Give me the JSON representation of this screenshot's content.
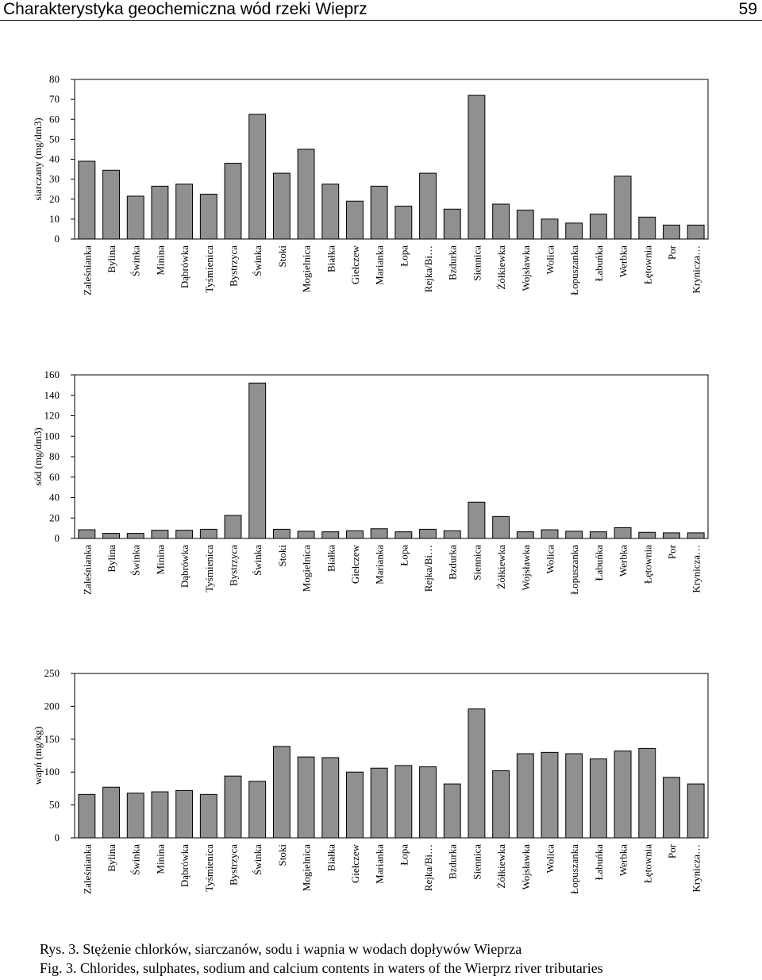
{
  "header": {
    "title": "Charakterystyka geochemiczna wód rzeki Wieprz",
    "page_number": "59"
  },
  "colors": {
    "bar_fill": "#909090",
    "bar_stroke": "#000000",
    "axis": "#000000"
  },
  "chart_data": [
    {
      "type": "bar",
      "categories": [
        "Zaleśnianka",
        "Bylina",
        "Świnka",
        "Minina",
        "Dąbrówka",
        "Tyśmienica",
        "Bystrzyca",
        "Świnka",
        "Stoki",
        "Mogielnica",
        "Białka",
        "Giełczew",
        "Marianka",
        "Łopa",
        "Rejka/Bi…",
        "Bzdurka",
        "Siennica",
        "Żółkiewka",
        "Wojsławka",
        "Wolica",
        "Łopuszanka",
        "Łabuńka",
        "Werbka",
        "Łętownia",
        "Por",
        "Krynicza…"
      ],
      "values": [
        39,
        34.5,
        21.5,
        26.5,
        27.5,
        22.5,
        38,
        62.5,
        33,
        45,
        27.5,
        19,
        26.5,
        16.5,
        33,
        15,
        72,
        17.5,
        14.5,
        10,
        8,
        12.5,
        31.5,
        11,
        7,
        7
      ],
      "ylabel": "siarczany (mg/dm3)",
      "ylim": [
        0,
        80
      ],
      "yticks": [
        "0",
        "10",
        "20",
        "30",
        "40",
        "50",
        "60",
        "70",
        "80"
      ]
    },
    {
      "type": "bar",
      "categories": [
        "Zaleśnianka",
        "Bylina",
        "Świnka",
        "Minina",
        "Dąbrówka",
        "Tyśmienica",
        "Bystrzyca",
        "Świnka",
        "Stoki",
        "Mogielnica",
        "Białka",
        "Giełczew",
        "Marianka",
        "Łopa",
        "Rejka/Bi…",
        "Bzdurka",
        "Siennica",
        "Żółkiewka",
        "Wojsławka",
        "Wolica",
        "Łopuszanka",
        "Łabuńka",
        "Werbka",
        "Łętownia",
        "Por",
        "Krynicza…"
      ],
      "values": [
        8.5,
        5,
        5,
        8,
        8,
        9,
        22.5,
        152,
        9,
        7,
        6.5,
        7.5,
        9.5,
        6.5,
        9,
        7.5,
        35.5,
        21.5,
        6.5,
        8.5,
        7,
        6.5,
        10.5,
        6,
        5.5,
        5.5
      ],
      "ylabel": "sód (mg/dm3)",
      "ylim": [
        0,
        160
      ],
      "yticks": [
        "0",
        "20",
        "40",
        "60",
        "80",
        "100",
        "120",
        "140",
        "160"
      ]
    },
    {
      "type": "bar",
      "categories": [
        "Zaleśnianka",
        "Bylina",
        "Świnka",
        "Minina",
        "Dąbrówka",
        "Tyśmienica",
        "Bystrzyca",
        "Świnka",
        "Stoki",
        "Mogielnica",
        "Białka",
        "Giełczew",
        "Marianka",
        "Łopa",
        "Rejka/Bi…",
        "Bzdurka",
        "Siennica",
        "Żółkiewka",
        "Wojsławka",
        "Wolica",
        "Łopuszanka",
        "Łabuńka",
        "Werbka",
        "Łętownia",
        "Por",
        "Krynicza…"
      ],
      "values": [
        66,
        77,
        68,
        70,
        72,
        66,
        94,
        86,
        139,
        123,
        122,
        100,
        106,
        110,
        108,
        82,
        196,
        102,
        128,
        130,
        128,
        120,
        132,
        136,
        92,
        82
      ],
      "ylabel": "wapń (mg/kg)",
      "ylim": [
        0,
        250
      ],
      "yticks": [
        "0",
        "50",
        "100",
        "150",
        "200",
        "250"
      ]
    }
  ],
  "captions": {
    "pl": "Rys. 3. Stężenie chlorków, siarczanów, sodu i wapnia w wodach dopływów Wieprza",
    "en": "Fig. 3. Chlorides, sulphates, sodium and calcium contents in waters of the Wierprz river tributaries"
  }
}
